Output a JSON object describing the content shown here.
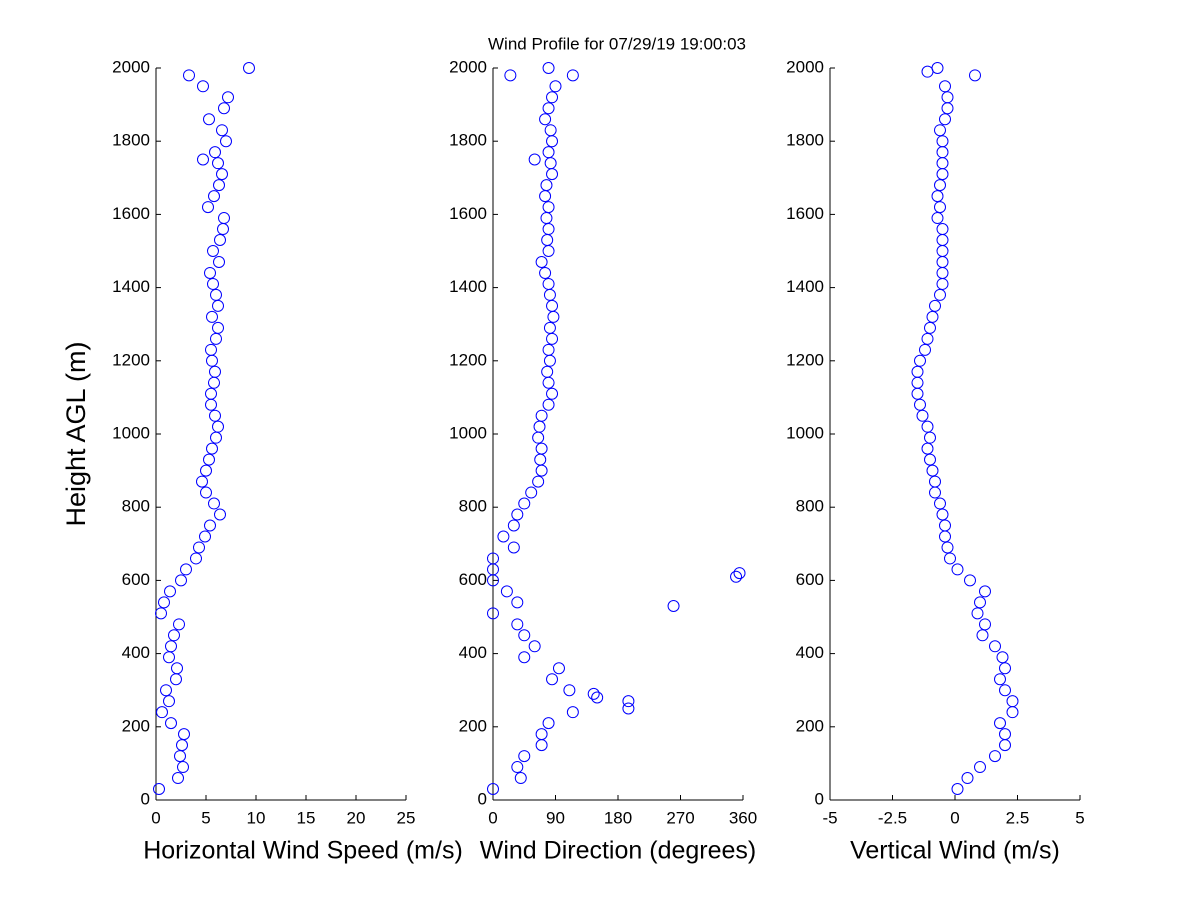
{
  "title": "Wind Profile for  07/29/19 19:00:03",
  "chart_data": [
    {
      "type": "scatter",
      "xlabel": "Horizontal Wind Speed (m/s)",
      "ylabel": "Height AGL (m)",
      "color": "#0000ff",
      "xlim": [
        0,
        25
      ],
      "xticks": [
        0,
        5,
        10,
        15,
        20,
        25
      ],
      "ylim": [
        0,
        2000
      ],
      "yticks": [
        0,
        200,
        400,
        600,
        800,
        1000,
        1200,
        1400,
        1600,
        1800,
        2000
      ],
      "x": [
        0.3,
        2.2,
        2.7,
        2.4,
        2.6,
        2.8,
        1.5,
        0.6,
        1.3,
        1.0,
        2.0,
        2.1,
        1.3,
        1.5,
        1.8,
        2.3,
        0.5,
        0.8,
        1.4,
        2.5,
        3.0,
        4.0,
        4.3,
        4.9,
        5.4,
        6.4,
        5.8,
        5.0,
        4.6,
        5.0,
        5.3,
        5.6,
        6.0,
        6.2,
        5.9,
        5.5,
        5.5,
        5.8,
        5.9,
        5.6,
        5.5,
        6.0,
        6.2,
        5.6,
        6.2,
        6.0,
        5.7,
        5.4,
        6.3,
        5.7,
        6.4,
        6.7,
        6.8,
        5.2,
        5.8,
        6.3,
        6.6,
        6.2,
        5.9,
        7.0,
        6.6,
        5.3,
        6.8,
        7.2,
        4.7,
        3.3,
        9.3,
        4.7
      ],
      "y": [
        30,
        60,
        90,
        120,
        150,
        180,
        210,
        240,
        270,
        300,
        330,
        360,
        390,
        420,
        450,
        480,
        510,
        540,
        570,
        600,
        630,
        660,
        690,
        720,
        750,
        780,
        810,
        840,
        870,
        900,
        930,
        960,
        990,
        1020,
        1050,
        1080,
        1110,
        1140,
        1170,
        1200,
        1230,
        1260,
        1290,
        1320,
        1350,
        1380,
        1410,
        1440,
        1470,
        1500,
        1530,
        1560,
        1590,
        1620,
        1650,
        1680,
        1710,
        1740,
        1770,
        1800,
        1830,
        1860,
        1890,
        1920,
        1950,
        1980,
        2000,
        1750
      ]
    },
    {
      "type": "scatter",
      "xlabel": "Wind Direction (degrees)",
      "color": "#0000ff",
      "xlim": [
        0,
        360
      ],
      "xticks": [
        0,
        90,
        180,
        270,
        360
      ],
      "ylim": [
        0,
        2000
      ],
      "yticks": [
        0,
        200,
        400,
        600,
        800,
        1000,
        1200,
        1400,
        1600,
        1800,
        2000
      ],
      "x": [
        0,
        40,
        35,
        45,
        70,
        70,
        80,
        115,
        195,
        110,
        85,
        95,
        45,
        60,
        45,
        35,
        0,
        35,
        20,
        0,
        0,
        0,
        30,
        15,
        30,
        35,
        45,
        55,
        65,
        70,
        68,
        70,
        65,
        67,
        70,
        80,
        85,
        80,
        78,
        82,
        80,
        85,
        82,
        87,
        85,
        82,
        80,
        75,
        70,
        80,
        78,
        80,
        77,
        80,
        75,
        77,
        85,
        83,
        80,
        85,
        83,
        75,
        80,
        85,
        90,
        25,
        80,
        260,
        350,
        355,
        145,
        150,
        195,
        60,
        115
      ],
      "y": [
        30,
        60,
        90,
        120,
        150,
        180,
        210,
        240,
        270,
        300,
        330,
        360,
        390,
        420,
        450,
        480,
        510,
        540,
        570,
        600,
        630,
        660,
        690,
        720,
        750,
        780,
        810,
        840,
        870,
        900,
        930,
        960,
        990,
        1020,
        1050,
        1080,
        1110,
        1140,
        1170,
        1200,
        1230,
        1260,
        1290,
        1320,
        1350,
        1380,
        1410,
        1440,
        1470,
        1500,
        1530,
        1560,
        1590,
        1620,
        1650,
        1680,
        1710,
        1740,
        1770,
        1800,
        1830,
        1860,
        1890,
        1920,
        1950,
        1980,
        2000,
        530,
        610,
        620,
        290,
        280,
        250,
        1750,
        1980
      ]
    },
    {
      "type": "scatter",
      "xlabel": "Vertical Wind (m/s)",
      "color": "#0000ff",
      "xlim": [
        -5,
        5
      ],
      "xticks": [
        -5,
        -2.5,
        0,
        2.5,
        5
      ],
      "ylim": [
        0,
        2000
      ],
      "yticks": [
        0,
        200,
        400,
        600,
        800,
        1000,
        1200,
        1400,
        1600,
        1800,
        2000
      ],
      "x": [
        0.1,
        0.5,
        1.0,
        1.6,
        2.0,
        2.0,
        1.8,
        2.3,
        2.3,
        2.0,
        1.8,
        2.0,
        1.9,
        1.6,
        1.1,
        1.2,
        0.9,
        1.0,
        1.2,
        0.6,
        0.1,
        -0.2,
        -0.3,
        -0.4,
        -0.4,
        -0.5,
        -0.6,
        -0.8,
        -0.8,
        -0.9,
        -1.0,
        -1.1,
        -1.0,
        -1.1,
        -1.3,
        -1.4,
        -1.5,
        -1.5,
        -1.5,
        -1.4,
        -1.2,
        -1.1,
        -1.0,
        -0.9,
        -0.8,
        -0.6,
        -0.5,
        -0.5,
        -0.5,
        -0.5,
        -0.5,
        -0.5,
        -0.7,
        -0.6,
        -0.7,
        -0.6,
        -0.5,
        -0.5,
        -0.5,
        -0.5,
        -0.6,
        -0.4,
        -0.3,
        -0.3,
        -0.4,
        0.8,
        -0.7,
        -1.1
      ],
      "y": [
        30,
        60,
        90,
        120,
        150,
        180,
        210,
        240,
        270,
        300,
        330,
        360,
        390,
        420,
        450,
        480,
        510,
        540,
        570,
        600,
        630,
        660,
        690,
        720,
        750,
        780,
        810,
        840,
        870,
        900,
        930,
        960,
        990,
        1020,
        1050,
        1080,
        1110,
        1140,
        1170,
        1200,
        1230,
        1260,
        1290,
        1320,
        1350,
        1380,
        1410,
        1440,
        1470,
        1500,
        1530,
        1560,
        1590,
        1620,
        1650,
        1680,
        1710,
        1740,
        1770,
        1800,
        1830,
        1860,
        1890,
        1920,
        1950,
        1980,
        2000,
        1990
      ]
    }
  ]
}
